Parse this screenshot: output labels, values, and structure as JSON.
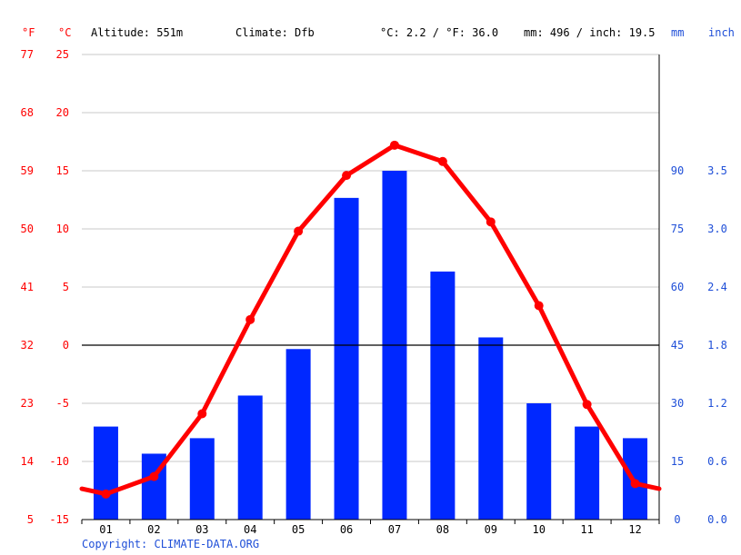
{
  "header": {
    "unit_f": "°F",
    "unit_c": "°C",
    "altitude": "Altitude: 551m",
    "climate": "Climate: Dfb",
    "temp_avg": "°C: 2.2 / °F: 36.0",
    "precip_avg": "mm: 496 / inch: 19.5",
    "unit_mm": "mm",
    "unit_inch": "inch"
  },
  "footer": {
    "copyright": "Copyright: CLIMATE-DATA.ORG"
  },
  "colors": {
    "temp": "#ff0000",
    "precip": "#0028ff",
    "text": "#000000",
    "grid": "#c8c8c8",
    "axis_blue": "#1f4fd8"
  },
  "chart_data": {
    "type": "bar",
    "categories": [
      "01",
      "02",
      "03",
      "04",
      "05",
      "06",
      "07",
      "08",
      "09",
      "10",
      "11",
      "12"
    ],
    "series": [
      {
        "values": [
          24,
          17,
          21,
          32,
          44,
          83,
          90,
          64,
          47,
          30,
          24,
          21
        ]
      },
      {
        "values": [
          -12.8,
          -11.3,
          -5.9,
          2.2,
          9.8,
          14.6,
          17.2,
          15.8,
          10.6,
          3.4,
          -5.1,
          -11.9
        ]
      }
    ],
    "temp_c_ticks": [
      "25",
      "20",
      "15",
      "10",
      "5",
      "0",
      "-5",
      "-10",
      "-15"
    ],
    "temp_f_ticks": [
      "77",
      "68",
      "59",
      "50",
      "41",
      "32",
      "23",
      "14",
      "5"
    ],
    "precip_mm_ticks": [
      "90",
      "75",
      "60",
      "45",
      "30",
      "15",
      "0"
    ],
    "precip_inch_ticks": [
      "3.5",
      "3.0",
      "2.4",
      "1.8",
      "1.2",
      "0.6",
      "0.0"
    ],
    "ylim_c": [
      -15,
      25
    ],
    "ylim_mm": [
      0,
      90
    ],
    "grid": true
  }
}
